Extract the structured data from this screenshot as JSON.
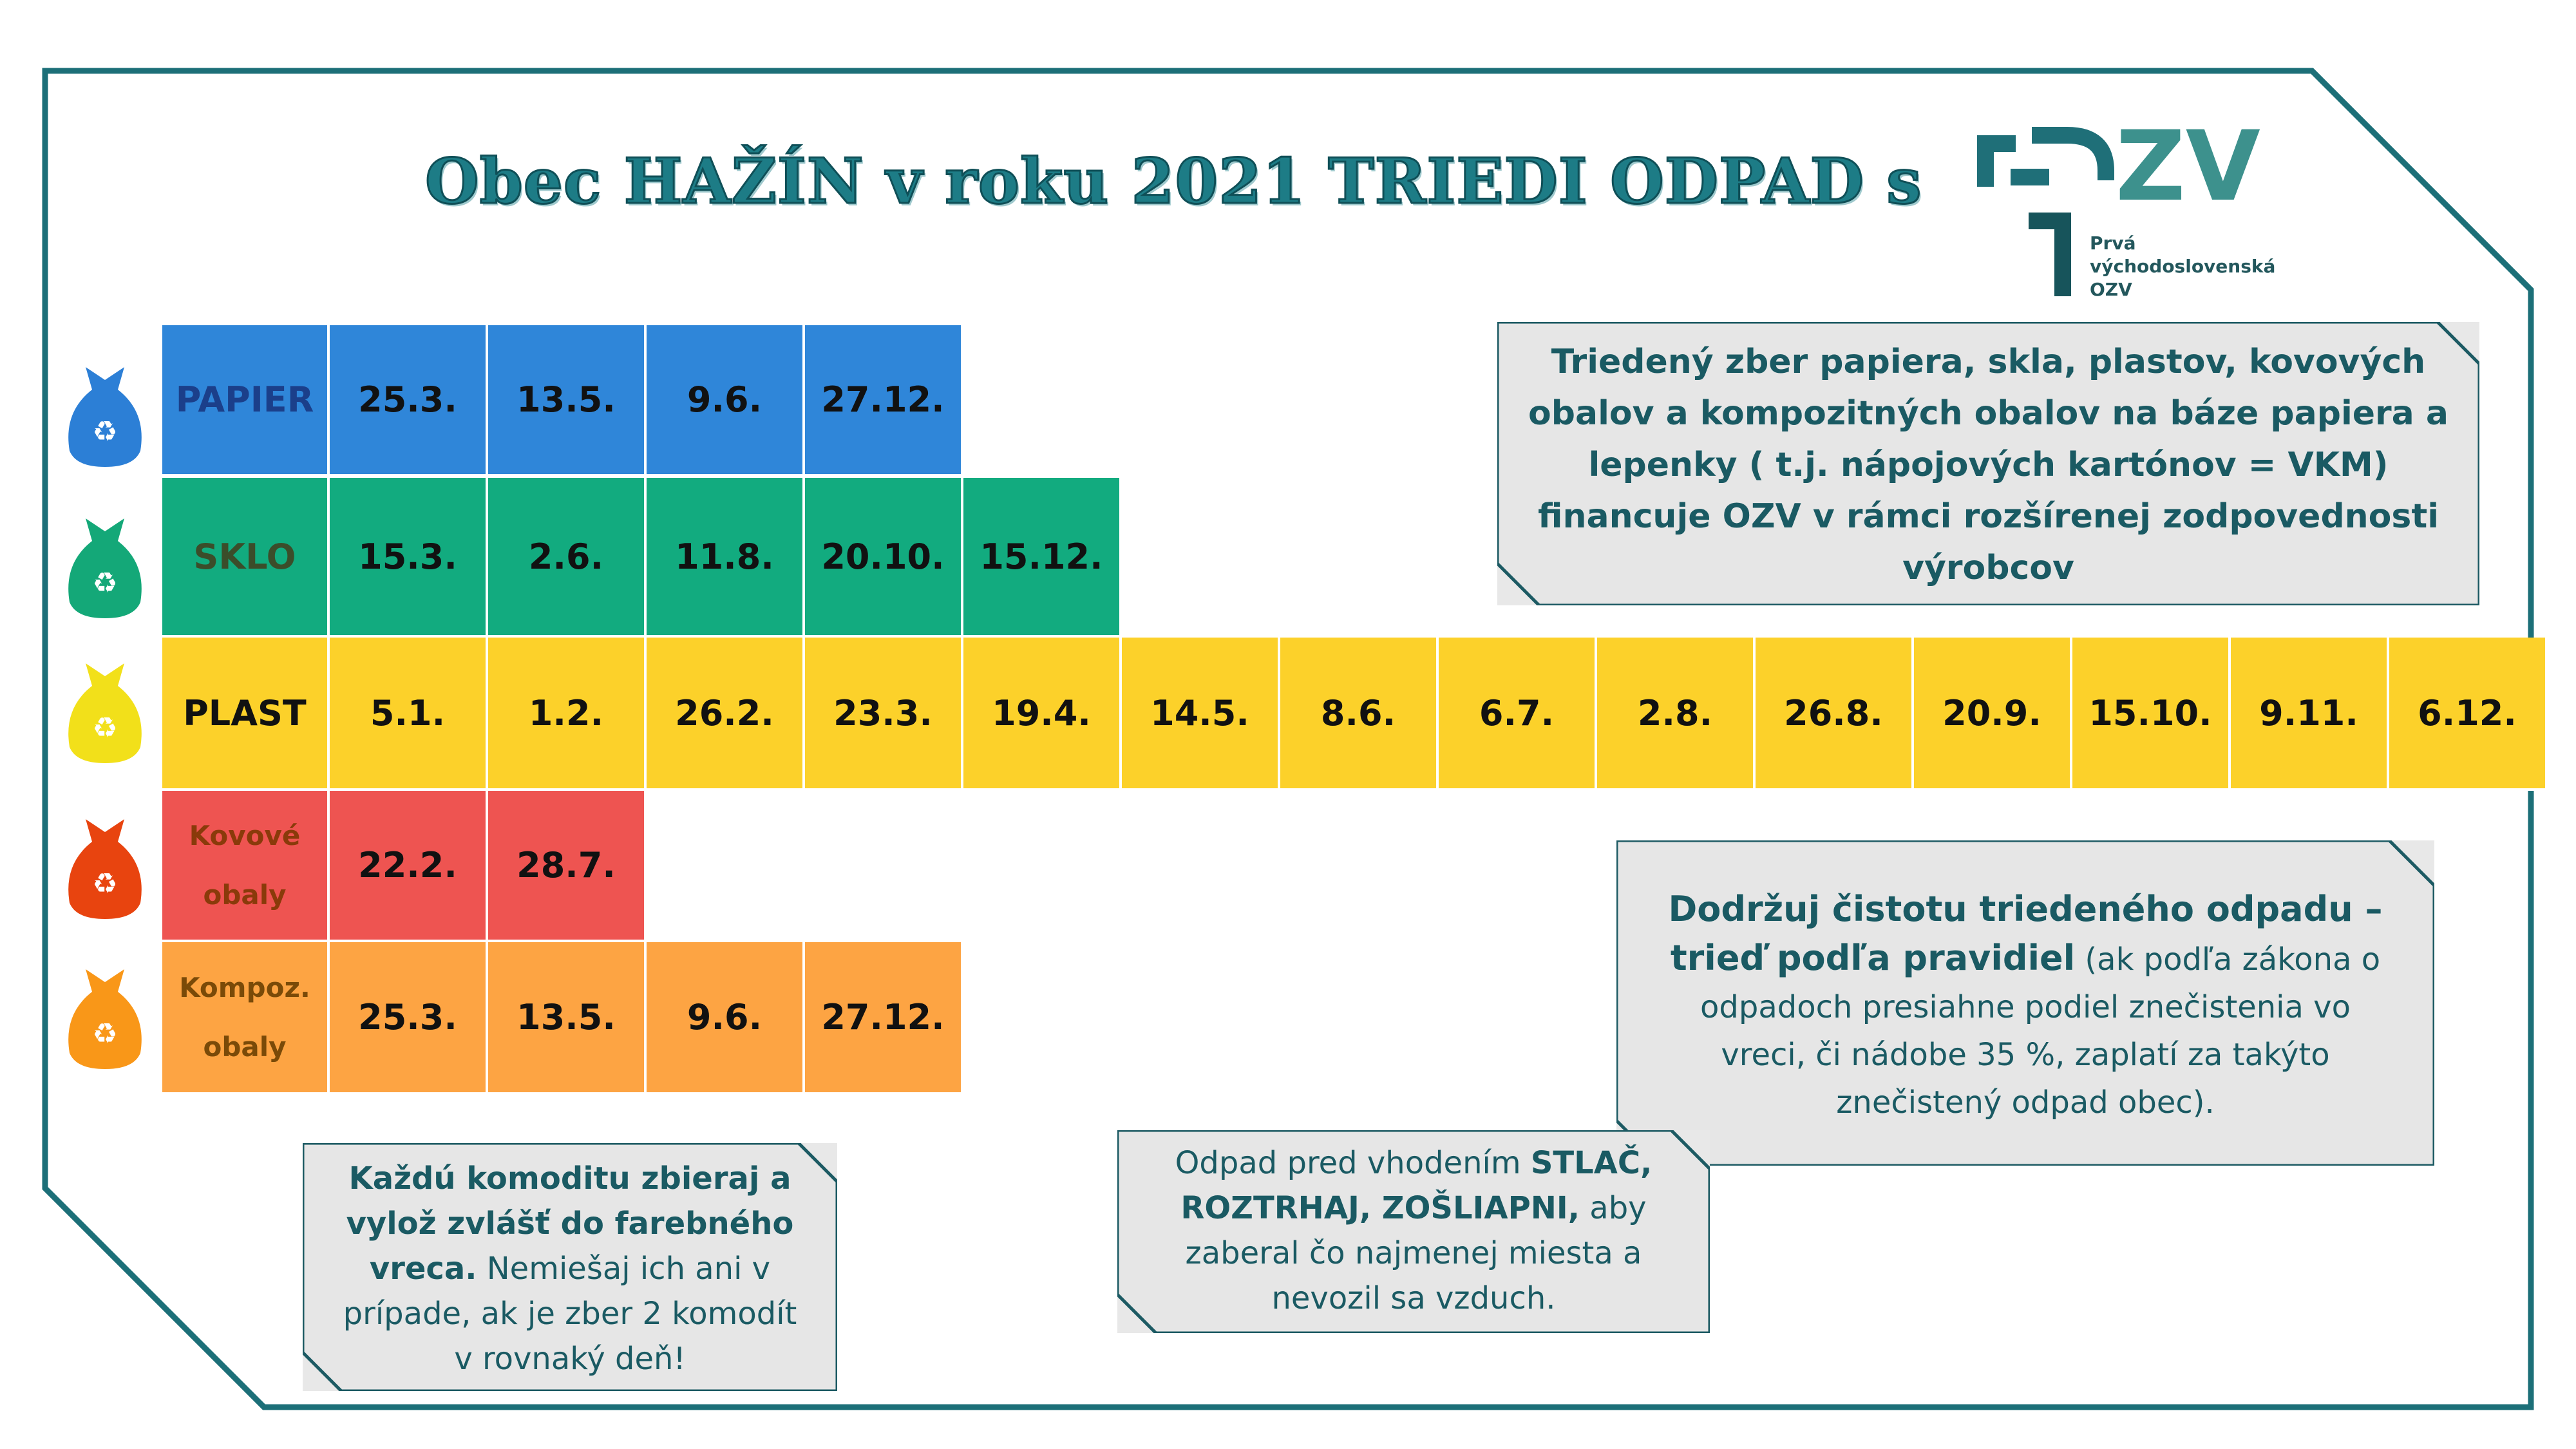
{
  "title": "Obec  HAŽÍN v roku 2021 TRIEDI ODPAD s",
  "logo": {
    "letters": "ZV",
    "line1": "Prvá",
    "line2": "východoslovenská",
    "line3": "OZV"
  },
  "colors": {
    "frame": "#1c6f78",
    "papier": "#2f86d9",
    "sklo": "#12ab7f",
    "plast": "#fcd12a",
    "kovove": "#ee5451",
    "kompoz": "#fda443"
  },
  "rows": [
    {
      "label": "PAPIER",
      "icon": "blue-recycle-bag-icon",
      "dates": [
        "25.3.",
        "13.5.",
        "9.6.",
        "27.12."
      ]
    },
    {
      "label": "SKLO",
      "icon": "green-recycle-bag-icon",
      "dates": [
        "15.3.",
        "2.6.",
        "11.8.",
        "20.10.",
        "15.12."
      ]
    },
    {
      "label": "PLAST",
      "icon": "yellow-recycle-bag-icon",
      "dates": [
        "5.1.",
        "1.2.",
        "26.2.",
        "23.3.",
        "19.4.",
        "14.5.",
        "8.6.",
        "6.7.",
        "2.8.",
        "26.8.",
        "20.9.",
        "15.10.",
        "9.11.",
        "6.12."
      ]
    },
    {
      "label_line1": "Kovové",
      "label_line2": "obaly",
      "icon": "red-recycle-bag-icon",
      "dates": [
        "22.2.",
        "28.7."
      ]
    },
    {
      "label_line1": "Kompoz.",
      "label_line2": "obaly",
      "icon": "orange-recycle-bag-icon",
      "dates": [
        "25.3.",
        "13.5.",
        "9.6.",
        "27.12."
      ]
    }
  ],
  "info_top": {
    "l1": "Triedený zber papiera, skla, plastov, kovových",
    "l2": "obalov a kompozitných obalov na báze papiera a",
    "l3": "lepenky ( t.j. nápojových kartónov = VKM)",
    "l4": "financuje OZV v rámci rozšírenej zodpovednosti",
    "l5": "výrobcov"
  },
  "info_clean": {
    "b1": "Dodržuj čistotu triedeného odpadu –",
    "b2": "trieď podľa pravidiel",
    "t2": " (ak podľa zákona o",
    "t3": "odpadoch presiahne podiel znečistenia vo",
    "t4": "vreci, či nádobe 35 %,  zaplatí za takýto",
    "t5": "znečistený odpad obec)."
  },
  "info_separate": {
    "b1": "Každú komoditu zbieraj a",
    "b2": "vylož zvlášť do farebného",
    "b3": "vreca.",
    "t3": "  Nemiešaj ich ani v",
    "t4": "prípade, ak je zber 2 komodít",
    "t5": "v rovnaký deň!"
  },
  "info_compress": {
    "t1": "Odpad pred vhodením ",
    "b1": "STLAČ,",
    "b2": "ROZTRHAJ, ZOŠLIAPNI,",
    "t2": " aby",
    "t3": "zaberal čo najmenej miesta a",
    "t4": "nevozil sa vzduch."
  }
}
